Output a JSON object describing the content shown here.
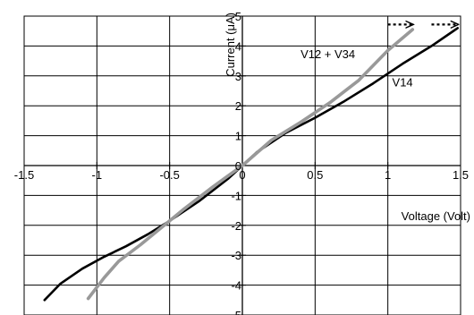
{
  "chart_data": {
    "type": "line",
    "title": "",
    "xlabel": "Voltage (Volt)",
    "ylabel": "Current (μA)",
    "xlim": [
      -1.5,
      1.5
    ],
    "ylim": [
      -5,
      5
    ],
    "x_ticks": [
      -1.5,
      -1,
      -0.5,
      0,
      0.5,
      1,
      1.5
    ],
    "x_tick_labels": [
      "-1.5",
      "-1",
      "-0.5",
      "0",
      "0.5",
      "1",
      "1.5"
    ],
    "y_ticks": [
      -5,
      -4,
      -3,
      -2,
      -1,
      0,
      1,
      2,
      3,
      4,
      5
    ],
    "y_tick_labels": [
      "-5",
      "-4",
      "-3",
      "-2",
      "-1",
      "0",
      "1",
      "2",
      "3",
      "4",
      "5"
    ],
    "grid": true,
    "series": [
      {
        "name": "V14",
        "color": "#000000",
        "x": [
          -1.36,
          -1.25,
          -1.1,
          -0.95,
          -0.8,
          -0.65,
          -0.5,
          -0.3,
          -0.1,
          0,
          0.1,
          0.3,
          0.5,
          0.7,
          0.9,
          1.1,
          1.3,
          1.48
        ],
        "y": [
          -4.5,
          -3.95,
          -3.45,
          -3.05,
          -2.7,
          -2.3,
          -1.85,
          -1.2,
          -0.45,
          0,
          0.45,
          1.1,
          1.6,
          2.15,
          2.75,
          3.4,
          4.0,
          4.6
        ]
      },
      {
        "name": "V12 + V34",
        "color": "#999999",
        "x": [
          -1.06,
          -0.95,
          -0.85,
          -0.7,
          -0.55,
          -0.4,
          -0.2,
          0,
          0.2,
          0.4,
          0.6,
          0.8,
          1.0,
          1.17
        ],
        "y": [
          -4.45,
          -3.75,
          -3.2,
          -2.65,
          -2.05,
          -1.45,
          -0.7,
          0,
          0.85,
          1.45,
          2.1,
          2.85,
          3.85,
          4.55
        ]
      }
    ],
    "annotations": [
      {
        "text": "V12 + V34",
        "x": 0.4,
        "y": 3.6
      },
      {
        "text": "V14",
        "x": 1.03,
        "y": 2.65
      }
    ],
    "arrows": [
      {
        "from": [
          1.0,
          4.6
        ],
        "to": [
          1.17,
          4.6
        ]
      },
      {
        "from": [
          1.3,
          4.6
        ],
        "to": [
          1.48,
          4.6
        ]
      }
    ]
  }
}
